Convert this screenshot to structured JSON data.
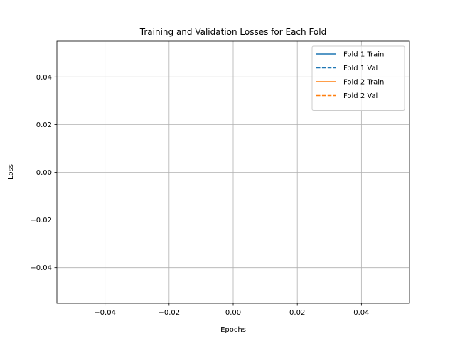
{
  "chart_data": {
    "type": "line",
    "title": "Training and Validation Losses for Each Fold",
    "xlabel": "Epochs",
    "ylabel": "Loss",
    "xlim": [
      -0.055,
      0.055
    ],
    "ylim": [
      -0.055,
      0.055
    ],
    "x_ticks": [
      -0.04,
      -0.02,
      0.0,
      0.02,
      0.04
    ],
    "x_tick_labels": [
      "−0.04",
      "−0.02",
      "0.00",
      "0.02",
      "0.04"
    ],
    "y_ticks": [
      -0.04,
      -0.02,
      0.0,
      0.02,
      0.04
    ],
    "y_tick_labels": [
      "−0.04",
      "−0.02",
      "0.00",
      "0.02",
      "0.04"
    ],
    "grid": true,
    "legend_position": "top-right",
    "series": [
      {
        "name": "Fold 1 Train",
        "color": "#1f77b4",
        "style": "solid",
        "x": [],
        "y": []
      },
      {
        "name": "Fold 1 Val",
        "color": "#1f77b4",
        "style": "dashed",
        "x": [],
        "y": []
      },
      {
        "name": "Fold 2 Train",
        "color": "#ff7f0e",
        "style": "solid",
        "x": [],
        "y": []
      },
      {
        "name": "Fold 2 Val",
        "color": "#ff7f0e",
        "style": "dashed",
        "x": [],
        "y": []
      }
    ]
  }
}
